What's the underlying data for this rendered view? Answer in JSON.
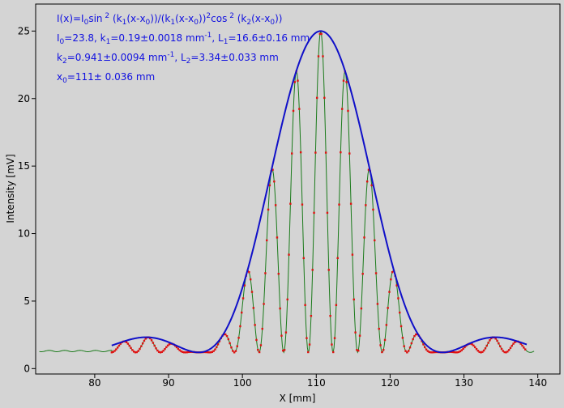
{
  "chart_data": {
    "type": "scatter",
    "title": "",
    "xlabel": "X [mm]",
    "ylabel": "Intensity [mV]",
    "xlim": [
      72,
      143
    ],
    "ylim": [
      -0.4,
      27
    ],
    "x_ticks": [
      80,
      90,
      100,
      110,
      120,
      130,
      140
    ],
    "y_ticks": [
      0,
      5,
      10,
      15,
      20,
      25
    ],
    "grid": false,
    "legend": "none",
    "annotation": {
      "formula": {
        "parts": [
          {
            "t": "I(x)=I",
            "k": "n"
          },
          {
            "t": "0",
            "k": "sub"
          },
          {
            "t": "sin",
            "k": "n"
          },
          {
            "t": " 2",
            "k": "sup"
          },
          {
            "t": " (k",
            "k": "n"
          },
          {
            "t": "1",
            "k": "sub"
          },
          {
            "t": "(x-x",
            "k": "n"
          },
          {
            "t": "0",
            "k": "sub"
          },
          {
            "t": "))/(k",
            "k": "n"
          },
          {
            "t": "1",
            "k": "sub"
          },
          {
            "t": "(x-x",
            "k": "n"
          },
          {
            "t": "0",
            "k": "sub"
          },
          {
            "t": "))",
            "k": "n"
          },
          {
            "t": "2",
            "k": "sup"
          },
          {
            "t": "cos",
            "k": "n"
          },
          {
            "t": " 2",
            "k": "sup"
          },
          {
            "t": " (k",
            "k": "n"
          },
          {
            "t": "2",
            "k": "sub"
          },
          {
            "t": "(x-x",
            "k": "n"
          },
          {
            "t": "0",
            "k": "sub"
          },
          {
            "t": "))",
            "k": "n"
          }
        ]
      },
      "line1": {
        "parts": [
          {
            "t": "I",
            "k": "n"
          },
          {
            "t": "0",
            "k": "sub"
          },
          {
            "t": "=23.8,  k",
            "k": "n"
          },
          {
            "t": "1",
            "k": "sub"
          },
          {
            "t": "=0.19±0.0018 mm",
            "k": "n"
          },
          {
            "t": "-1",
            "k": "sup"
          },
          {
            "t": ",   L",
            "k": "n"
          },
          {
            "t": "1",
            "k": "sub"
          },
          {
            "t": "=16.6±0.16 mm",
            "k": "n"
          }
        ]
      },
      "line2": {
        "parts": [
          {
            "t": "k",
            "k": "n"
          },
          {
            "t": "2",
            "k": "sub"
          },
          {
            "t": "=0.941±0.0094 mm",
            "k": "n"
          },
          {
            "t": "-1",
            "k": "sup"
          },
          {
            "t": ",   L",
            "k": "n"
          },
          {
            "t": "2",
            "k": "sub"
          },
          {
            "t": "=3.34±0.033 mm",
            "k": "n"
          }
        ]
      },
      "line3": {
        "parts": [
          {
            "t": "x",
            "k": "n"
          },
          {
            "t": "0",
            "k": "sub"
          },
          {
            "t": "=111±  0.036 mm",
            "k": "n"
          }
        ]
      }
    },
    "model": {
      "I0": 23.8,
      "k1": 0.19,
      "k2": 0.941,
      "x0": 110.6,
      "offset": 1.2
    },
    "series": [
      {
        "kind": "measured",
        "color": "#1a7a1a",
        "x_range": [
          72.5,
          139.5
        ],
        "plateau_x": 82.3,
        "plateau_y": 1.3
      },
      {
        "kind": "fit",
        "color": "#e01010",
        "x_range": [
          82.3,
          138.5
        ],
        "step": 0.2
      },
      {
        "kind": "envelope",
        "color": "#1010c8",
        "x_range": [
          82.3,
          138.5
        ],
        "width": 2
      }
    ],
    "colors": {
      "background": "#d4d4d4",
      "frame": "#000000",
      "annotation": "#1010e0"
    }
  }
}
